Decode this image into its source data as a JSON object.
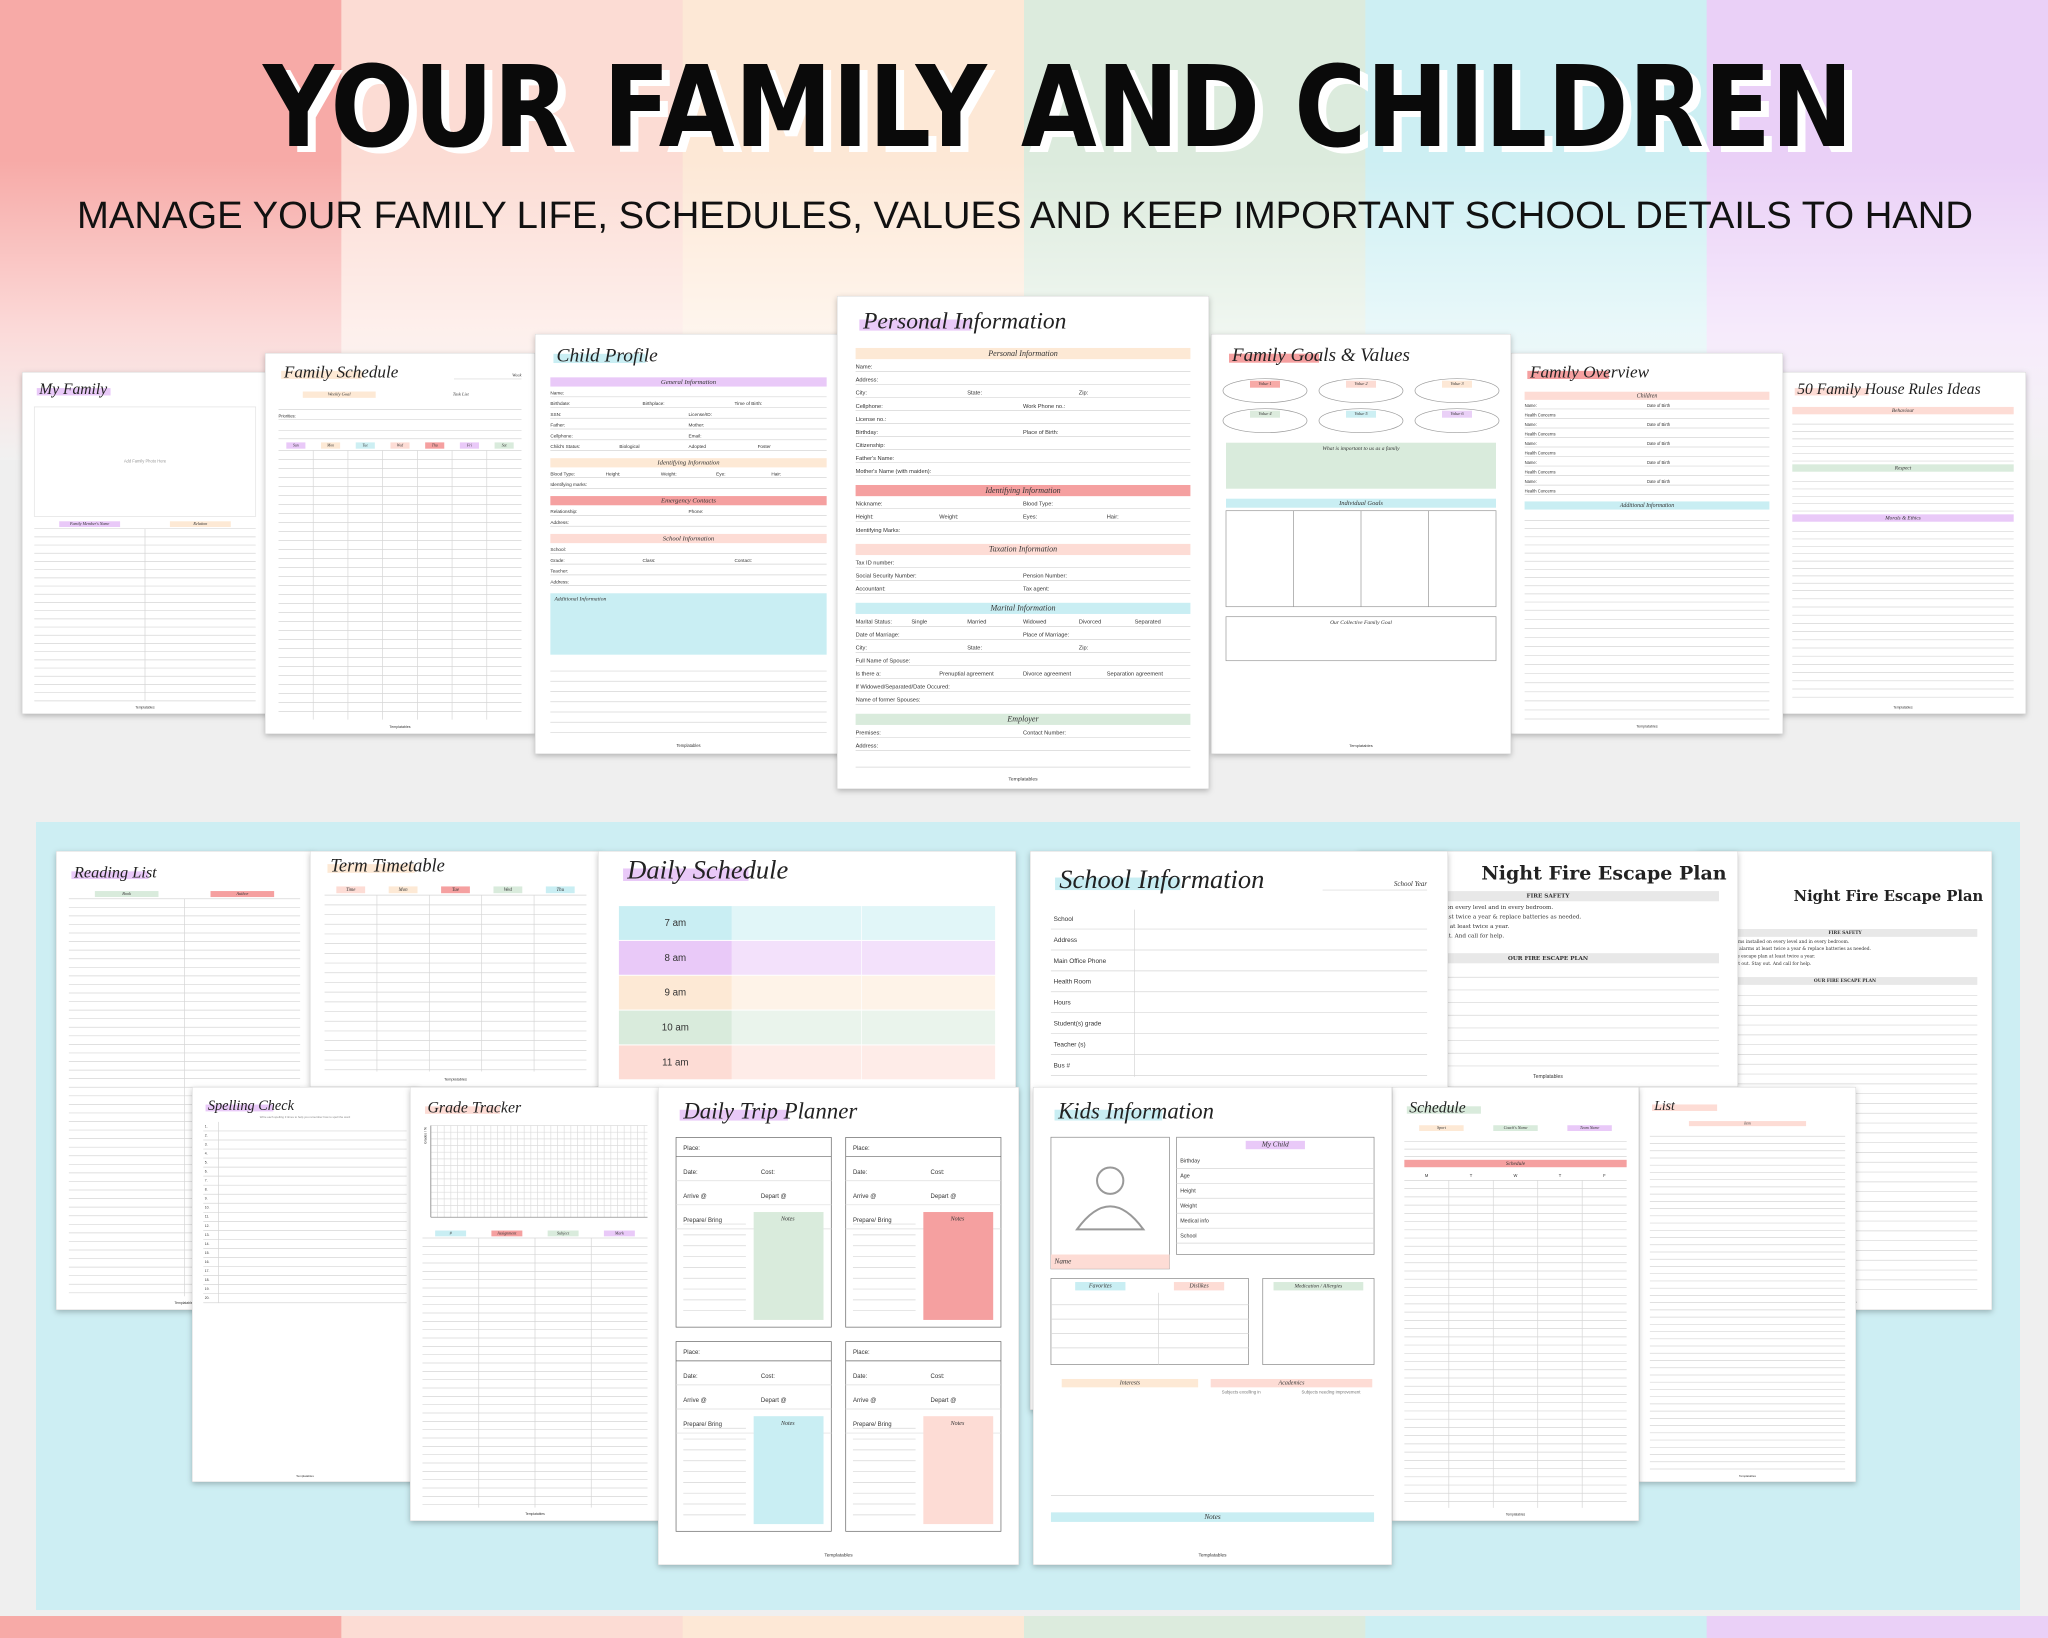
{
  "title": "YOUR FAMILY AND CHILDREN",
  "subtitle": "MANAGE YOUR FAMILY LIFE, SCHEDULES, VALUES AND KEEP IMPORTANT SCHOOL DETAILS TO HAND",
  "stripes": [
    "#f7aaa7",
    "#fcdcd4",
    "#fde8d6",
    "#dcebdd",
    "#cdeff3",
    "#ead0f7"
  ],
  "panel_color": "#cdeef3",
  "footer": "Templatables",
  "pages": [
    {
      "title": "My Family",
      "color": "#e9c9f8",
      "photo": "Add Family Photo Here",
      "columns": [
        {
          "label": "Family Member's Name",
          "color": "#e9c9f8"
        },
        {
          "label": "Relation",
          "color": "#fde9d5"
        }
      ]
    },
    {
      "title": "50 Family House Rules Ideas",
      "color": "#fddcd5",
      "sections": [
        {
          "heading": "Behaviour",
          "color": "#fddcd5",
          "lines": 6
        },
        {
          "heading": "Respect",
          "color": "#d9ebdc",
          "lines": 5
        },
        {
          "heading": "Morals & Ethics",
          "color": "#e9c9f8",
          "lines": 9
        }
      ]
    },
    {
      "title": "Family Schedule",
      "color": "#fde9d5",
      "corner": "Week",
      "sections": [
        {
          "heads": [
            {
              "label": "Weekly Goal",
              "color": "#fde9d5"
            },
            {
              "label": "Task List",
              "color": "#ffffff"
            }
          ],
          "lines": 1
        },
        {
          "rows": [
            [
              "Priorities:"
            ]
          ],
          "lines": 2
        }
      ],
      "columns": [
        {
          "label": "Sun",
          "color": "#e9c9f8"
        },
        {
          "label": "Mon",
          "color": "#fde9d5"
        },
        {
          "label": "Tue",
          "color": "#cdeff3"
        },
        {
          "label": "Wed",
          "color": "#fddcd5"
        },
        {
          "label": "Thu",
          "color": "#f5a0a0"
        },
        {
          "label": "Fri",
          "color": "#e9c9f8"
        },
        {
          "label": "Sat",
          "color": "#d9ebdc"
        }
      ]
    },
    {
      "title": "Family Overview",
      "color": "#f5a0a0",
      "sections": [
        {
          "heading": "Children",
          "color": "#fddcd5",
          "rows": [
            [
              "Name:",
              "Date of Birth"
            ],
            [
              "Health Concerns"
            ],
            [
              "Name:",
              "Date of Birth"
            ],
            [
              "Health Concerns"
            ],
            [
              "Name:",
              "Date of Birth"
            ],
            [
              "Health Concerns"
            ],
            [
              "Name:",
              "Date of Birth"
            ],
            [
              "Health Concerns"
            ],
            [
              "Name:",
              "Date of Birth"
            ],
            [
              "Health Concerns"
            ]
          ]
        },
        {
          "heading": "Additional Information",
          "color": "#c9eef3",
          "lines": 12
        }
      ]
    },
    {
      "title": "Child Profile",
      "color": "#c9eef3",
      "sections": [
        {
          "heading": "General Information",
          "color": "#e9c9f8",
          "rows": [
            [
              "Name:"
            ],
            [
              "Birthdate:",
              "Birthplace:",
              "Time of Birth:"
            ],
            [
              "SSN:",
              "License/ID:"
            ],
            [
              "Father:",
              "Mother:"
            ],
            [
              "Cellphone:",
              "Email:"
            ],
            [
              "Child's Status:",
              "Biological",
              "Adopted",
              "Foster"
            ]
          ]
        },
        {
          "heading": "Identifying Information",
          "color": "#fde9d5",
          "rows": [
            [
              "Blood Type:",
              "Height:",
              "Weight:",
              "Eye:",
              "Hair:"
            ],
            [
              "Identifying marks:"
            ]
          ]
        },
        {
          "heading": "Emergency Contacts",
          "color": "#f5a0a0",
          "rows": [
            [
              "Relationship:",
              "Phone:"
            ],
            [
              "Address:"
            ]
          ]
        },
        {
          "heading": "School Information",
          "color": "#fddcd5",
          "rows": [
            [
              "School:"
            ],
            [
              "Grade:",
              "Class:",
              "Contact:"
            ],
            [
              "Teacher:"
            ],
            [
              "Address:"
            ]
          ]
        },
        {
          "heading": "Additional Information",
          "color": "#c9eef3",
          "box": 60
        }
      ]
    },
    {
      "title": "Family Goals & Values",
      "color": "#f5a0a0",
      "ovals": [
        "Value 1",
        "Value 2",
        "Value 3",
        "Value 4",
        "Value 5",
        "Value 6"
      ],
      "sections": [
        {
          "heading": "What is important to us as a family",
          "color": "#d9ebdc",
          "box": 46
        },
        {
          "heading": "Individual Goals",
          "color": "#c9eef3",
          "bar": true,
          "box": 96,
          "cols": 4
        },
        {
          "heading": "Our Collective Family Goal",
          "box": 44
        }
      ]
    },
    {
      "title": "Personal Information",
      "color": "#e9c9f8",
      "sections": [
        {
          "heading": "Personal Information",
          "color": "#fde9d5",
          "rows": [
            [
              "Name:"
            ],
            [
              "Address:"
            ],
            [
              "City:",
              "State:",
              "Zip:"
            ],
            [
              "Cellphone:",
              "Work Phone no.:"
            ],
            [
              "License no.:"
            ],
            [
              "Birthday:",
              "Place of Birth:"
            ],
            [
              "Citizenship:"
            ],
            [
              "Father's Name:"
            ],
            [
              "Mother's Name (with maiden):"
            ]
          ]
        },
        {
          "heading": "Identifying Information",
          "color": "#f5a0a0",
          "rows": [
            [
              "Nickname:",
              "Blood Type:"
            ],
            [
              "Height:",
              "Weight:",
              "Eyes:",
              "Hair:"
            ],
            [
              "Identifying Marks:"
            ]
          ]
        },
        {
          "heading": "Taxation Information",
          "color": "#fddcd5",
          "rows": [
            [
              "Tax ID number:"
            ],
            [
              "Social Security Number:",
              "Pension Number:"
            ],
            [
              "Accountant:",
              "Tax agent:"
            ]
          ]
        },
        {
          "heading": "Marital Information",
          "color": "#c9eef3",
          "rows": [
            [
              "Marital Status:",
              "Single",
              "Married",
              "Widowed",
              "Divorced",
              "Separated"
            ],
            [
              "Date of Marriage:",
              "Place of Marriage:"
            ],
            [
              "City:",
              "State:",
              "Zip:"
            ],
            [
              "Full Name of Spouse:"
            ],
            [
              "Is there a:",
              "Prenuptial agreement",
              "Divorce agreement",
              "Separation agreement"
            ],
            [
              "If Widowed/Separated/Date Occured:"
            ],
            [
              "Name of former Spouses:"
            ]
          ]
        },
        {
          "heading": "Employer",
          "color": "#d9ebdc",
          "rows": [
            [
              "Premises:",
              "Contact Number:"
            ],
            [
              "Address:"
            ]
          ]
        }
      ]
    },
    {
      "title": "Reading List",
      "color": "#e9c9f8",
      "columns": [
        {
          "label": "Book",
          "color": "#d9ebdc"
        },
        {
          "label": "Author",
          "color": "#f5a0a0"
        }
      ]
    },
    {
      "title": "Term Timetable",
      "color": "#fde9d5",
      "columns": [
        {
          "label": "Time",
          "color": "#fddcd5"
        },
        {
          "label": "Mon",
          "color": "#fde9d5"
        },
        {
          "label": "Tue",
          "color": "#f5a0a0"
        },
        {
          "label": "Wed",
          "color": "#d9ebdc"
        },
        {
          "label": "Thu",
          "color": "#c9eef3"
        }
      ]
    },
    {
      "title": "Daily Schedule",
      "color": "#e9c9f8",
      "times": [
        "7 am",
        "8 am",
        "9 am",
        "10 am",
        "11 am"
      ],
      "time_colors": [
        "#c9eef3",
        "#e9c9f8",
        "#fde9d5",
        "#d9ebdc",
        "#fddcd5"
      ]
    },
    {
      "title": "Night Fire Escape Plan",
      "serif": true,
      "escape": [
        {
          "heading": "FIRE SAFETY",
          "lines": [
            "Smoke alarms installed on every level and in every bedroom.",
            "Test smoke alarms at least twice a year & replace batteries as needed.",
            "Practice the escape plan at least twice a year.",
            "Get low. Get out. Stay out. And call for help."
          ]
        },
        {
          "heading": "OUR FIRE ESCAPE PLAN"
        }
      ]
    },
    {
      "title": "Night Fire Escape Plan",
      "serif": true,
      "escape": [
        {
          "heading": "FIRE SAFETY",
          "lines": [
            "Smoke alarms installed on every level and in every bedroom.",
            "Test smoke alarms at least twice a year & replace batteries as needed.",
            "Practice the escape plan at least twice a year.",
            "Get low. Get out. Stay out. And call for help."
          ]
        },
        {
          "heading": "OUR FIRE ESCAPE PLAN"
        }
      ]
    },
    {
      "title": "School Information",
      "color": "#c9eef3",
      "corner": "School Year",
      "table": [
        "School",
        "Address",
        "Main Office Phone",
        "Health Room",
        "Hours",
        "Student(s) grade",
        "Teacher (s)",
        "Bus #"
      ]
    },
    {
      "title": "List",
      "color": "#fddcd5",
      "sections": [
        {
          "heads": [
            {
              "label": "Item",
              "color": "#fddcd5"
            }
          ]
        }
      ]
    },
    {
      "title": "Schedule",
      "color": "#d9ebdc",
      "sections": [
        {
          "heads": [
            {
              "label": "Sport",
              "color": "#fde9d5"
            },
            {
              "label": "Coach's Name",
              "color": "#d9ebdc"
            },
            {
              "label": "Team Name",
              "color": "#e9c9f8"
            }
          ],
          "lines": 3
        },
        {
          "heading": "Schedule",
          "color": "#f5a0a0"
        }
      ],
      "columns": [
        {
          "label": "M"
        },
        {
          "label": "T"
        },
        {
          "label": "W"
        },
        {
          "label": "T"
        },
        {
          "label": "F"
        }
      ]
    },
    {
      "title": "Spelling Check",
      "color": "#e9c9f8",
      "note": "Write each spelling 3 times to help you remember how to spell the word",
      "numbers": [
        "1.",
        "2.",
        "3.",
        "4.",
        "5.",
        "6.",
        "7.",
        "8.",
        "9.",
        "10.",
        "11.",
        "12.",
        "13.",
        "14.",
        "15.",
        "16.",
        "17.",
        "18.",
        "19.",
        "20."
      ]
    },
    {
      "title": "Grade Tracker",
      "color": "#fddcd5",
      "grid": "Grades / %",
      "columns": [
        {
          "label": "#",
          "color": "#c9eef3"
        },
        {
          "label": "Assignment",
          "color": "#f5a0a0"
        },
        {
          "label": "Subject",
          "color": "#d9ebdc"
        },
        {
          "label": "Mark",
          "color": "#e9c9f8"
        }
      ]
    },
    {
      "title": "Daily Trip Planner",
      "color": "#e9c9f8",
      "trip": {
        "rows": [
          [
            "Place:"
          ],
          [
            "Date:",
            "Cost:"
          ],
          [
            "Arrive @",
            "Depart @"
          ],
          [
            "Prepare/ Bring"
          ]
        ],
        "notes": "Notes",
        "colors": [
          "#d9ebdc",
          "#f5a0a0",
          "#c9eef3",
          "#fddcd5"
        ]
      }
    },
    {
      "title": "Kids Information",
      "color": "#c9eef3",
      "kids": {
        "name": "Name",
        "heading": "My Child",
        "fields": [
          "Birthday",
          "Age",
          "Height",
          "Weight",
          "Medical info",
          "School"
        ],
        "likes": [
          "Favorites",
          "Dislikes"
        ],
        "medication": "Medication / Allergies",
        "interests": "Interests",
        "academics": "Academics",
        "subs": [
          "Subjects excelling in",
          "Subjects needing improvement"
        ],
        "notes": "Notes"
      }
    }
  ]
}
